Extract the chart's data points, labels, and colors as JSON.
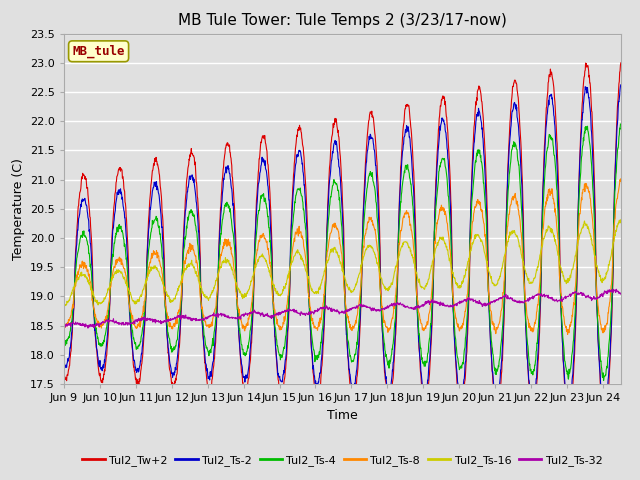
{
  "title": "MB Tule Tower: Tule Temps 2 (3/23/17-now)",
  "xlabel": "Time",
  "ylabel": "Temperature (C)",
  "ylim": [
    17.5,
    23.5
  ],
  "yticks": [
    17.5,
    18.0,
    18.5,
    19.0,
    19.5,
    20.0,
    20.5,
    21.0,
    21.5,
    22.0,
    22.5,
    23.0,
    23.5
  ],
  "xtick_labels": [
    "Jun 9",
    "Jun 10",
    "Jun 11",
    "Jun 12",
    "Jun 13",
    "Jun 14",
    "Jun 15",
    "Jun 16",
    "Jun 17",
    "Jun 18",
    "Jun 19",
    "Jun 20",
    "Jun 21",
    "Jun 22",
    "Jun 23",
    "Jun 24"
  ],
  "series_colors": [
    "#dd0000",
    "#0000cc",
    "#00bb00",
    "#ff8800",
    "#cccc00",
    "#aa00aa"
  ],
  "series_labels": [
    "Tul2_Tw+2",
    "Tul2_Ts-2",
    "Tul2_Ts-4",
    "Tul2_Ts-8",
    "Tul2_Ts-16",
    "Tul2_Ts-32"
  ],
  "bg_color": "#e0e0e0",
  "plot_bg_color": "#e0e0e0",
  "grid_color": "#ffffff",
  "station_label": "MB_tule",
  "station_label_color": "#990000",
  "station_box_facecolor": "#ffffcc",
  "station_box_edgecolor": "#999900",
  "title_fontsize": 11,
  "axis_fontsize": 9,
  "tick_fontsize": 8,
  "legend_fontsize": 8
}
